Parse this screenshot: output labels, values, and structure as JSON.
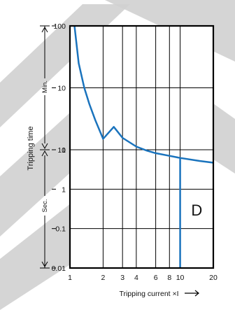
{
  "chart_data": {
    "type": "line",
    "x_axis": {
      "label": "Tripping current ×I",
      "scale": "log",
      "range": [
        1,
        20
      ],
      "tick_labels": [
        "1",
        "2",
        "3",
        "4",
        "6",
        "8",
        "10",
        "20"
      ],
      "tick_values": [
        1,
        2,
        3,
        4,
        6,
        8,
        10,
        20
      ]
    },
    "y_axis": {
      "label": "Tripping time",
      "scale": "log",
      "segments": [
        {
          "unit_label": "Min.",
          "tick_labels": [
            "100",
            "10",
            "1"
          ]
        },
        {
          "unit_label": "Sec.",
          "tick_labels": [
            "10",
            "1",
            "0.1",
            "0.01"
          ]
        }
      ]
    },
    "grid": true,
    "series": [
      {
        "x": [
          1.1,
          1.2,
          1.35,
          1.5,
          1.7,
          2.0,
          2.5,
          3.0,
          4.0,
          5.0,
          6.0,
          8.0,
          10.0,
          15.0,
          20.0
        ],
        "y_seconds": [
          6000,
          1500,
          600,
          330,
          180,
          90,
          38,
          20,
          12,
          9.5,
          8.2,
          7.0,
          6.2,
          5.2,
          4.7
        ]
      }
    ],
    "annotations": [
      {
        "text": "D",
        "region_x": [
          10,
          20
        ],
        "description": "instantaneous trip region"
      }
    ]
  },
  "colors": {
    "curve": "#1a73bd",
    "watermark": "#d0d0d0",
    "frame": "#000000"
  }
}
